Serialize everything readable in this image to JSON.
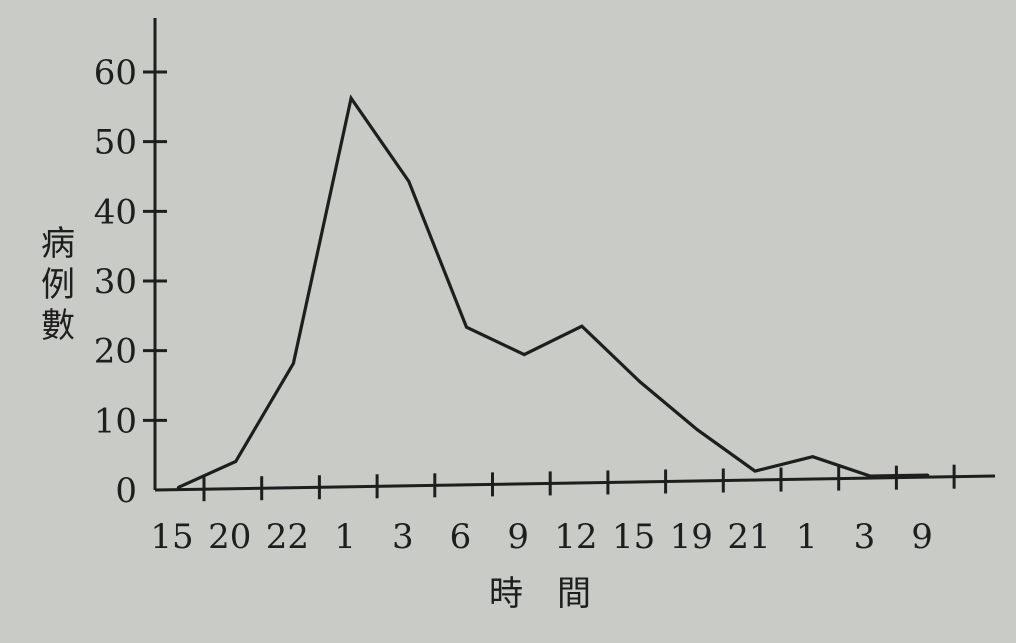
{
  "chart_data": {
    "type": "line",
    "title": "",
    "xlabel": "時　間",
    "ylabel": "病例數",
    "categories": [
      "15",
      "20",
      "22",
      "1",
      "3",
      "6",
      "9",
      "12",
      "15",
      "19",
      "21",
      "1",
      "3",
      "9"
    ],
    "series": [
      {
        "values": [
          0,
          4,
          18,
          56,
          44,
          23,
          19,
          23,
          15,
          8,
          2,
          4,
          0,
          0
        ]
      }
    ],
    "yticks": [
      0,
      10,
      20,
      30,
      40,
      50,
      60
    ],
    "ylim": [
      0,
      66
    ],
    "grid": false,
    "legend": "none",
    "colors": {
      "line": "#1e1e1e",
      "background": "#c9cbc6"
    }
  }
}
